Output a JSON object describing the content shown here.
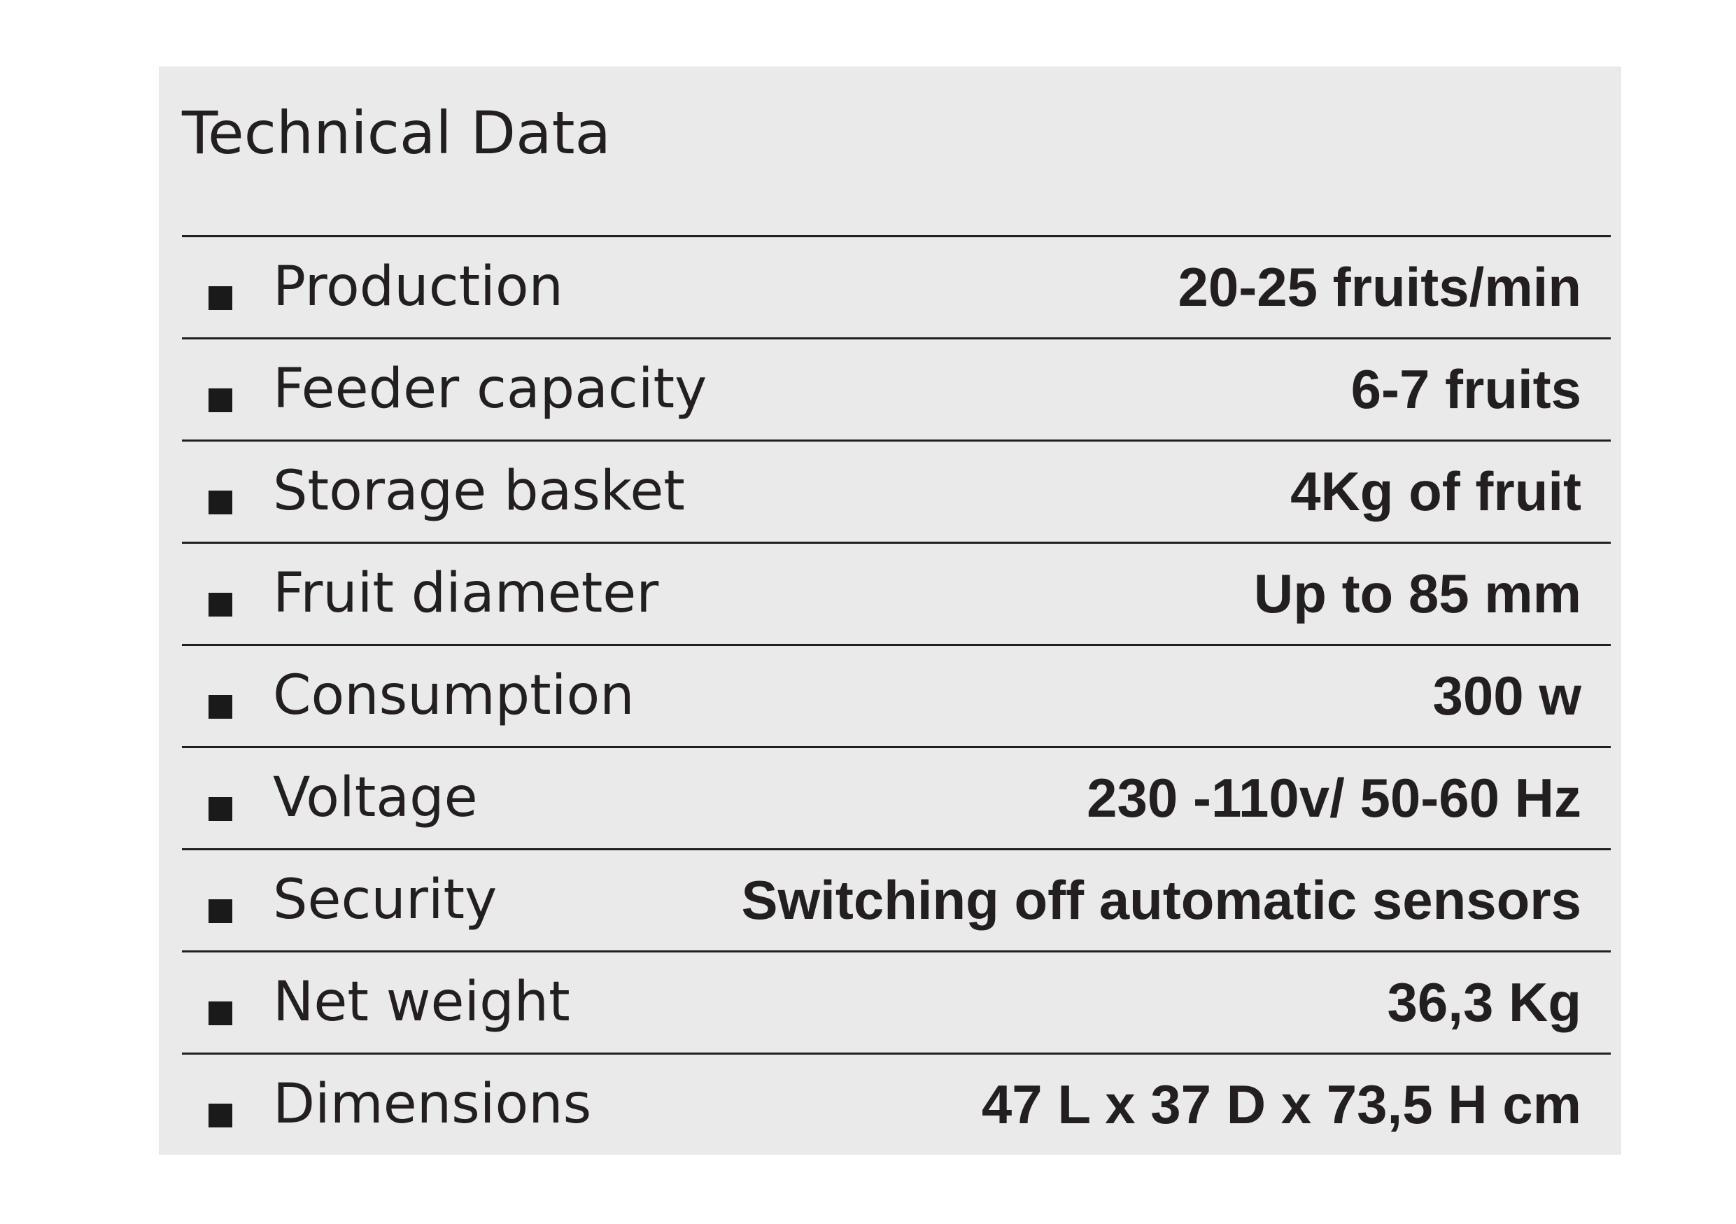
{
  "title": "Technical Data",
  "rows": [
    {
      "label": "Production",
      "value": "20-25 fruits/min"
    },
    {
      "label": "Feeder capacity",
      "value": "6-7 fruits"
    },
    {
      "label": "Storage basket",
      "value": "4Kg of fruit"
    },
    {
      "label": "Fruit diameter",
      "value": "Up to 85 mm"
    },
    {
      "label": "Consumption",
      "value": "300 w"
    },
    {
      "label": "Voltage",
      "value": "230 -110v/ 50-60 Hz"
    },
    {
      "label": "Security",
      "value": "Switching off automatic sensors"
    },
    {
      "label": "Net weight",
      "value": "36,3 Kg"
    },
    {
      "label": "Dimensions",
      "value": "47 L x 37 D x 73,5 H  cm"
    }
  ]
}
